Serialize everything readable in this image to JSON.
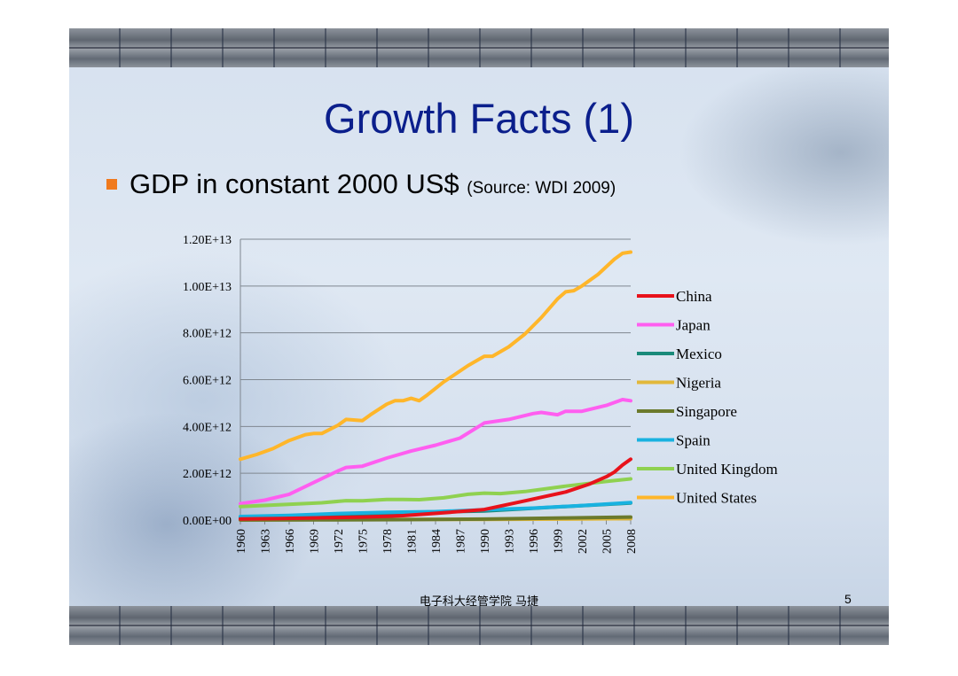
{
  "slide": {
    "title": "Growth Facts (1)",
    "bullet_main": "GDP in constant 2000 US$ ",
    "bullet_source": "(Source: WDI 2009)",
    "footer": "电子科大经管学院 马捷",
    "page_number": "5",
    "bullet_color": "#f07a1e",
    "title_color": "#0b1f8c"
  },
  "chart_data": {
    "type": "line",
    "title": "",
    "xlabel": "",
    "ylabel": "",
    "ylim": [
      0,
      12000000000000
    ],
    "y_ticks": [
      0,
      2000000000000,
      4000000000000,
      6000000000000,
      8000000000000,
      10000000000000,
      12000000000000
    ],
    "y_tick_labels": [
      "0.00E+00",
      "2.00E+12",
      "4.00E+12",
      "6.00E+12",
      "8.00E+12",
      "1.00E+13",
      "1.20E+13"
    ],
    "x_range": [
      1960,
      2008
    ],
    "x_tick_labels": [
      "1960",
      "1963",
      "1966",
      "1969",
      "1972",
      "1975",
      "1978",
      "1981",
      "1984",
      "1987",
      "1990",
      "1993",
      "1996",
      "1999",
      "2002",
      "2005",
      "2008"
    ],
    "grid": "horizontal",
    "legend_position": "right",
    "series": [
      {
        "name": "China",
        "color": "#e8121b",
        "x": [
          1960,
          1965,
          1970,
          1975,
          1978,
          1980,
          1985,
          1990,
          1995,
          2000,
          2003,
          2005,
          2006,
          2007,
          2008
        ],
        "values": [
          50000000000,
          70000000000,
          100000000000,
          130000000000,
          160000000000,
          190000000000,
          310000000000,
          450000000000,
          820000000000,
          1200000000000,
          1550000000000,
          1850000000000,
          2050000000000,
          2350000000000,
          2600000000000
        ]
      },
      {
        "name": "Japan",
        "color": "#ff5ef0",
        "x": [
          1960,
          1963,
          1966,
          1969,
          1972,
          1973,
          1975,
          1978,
          1981,
          1984,
          1987,
          1990,
          1993,
          1996,
          1997,
          1999,
          2000,
          2002,
          2005,
          2007,
          2008
        ],
        "values": [
          700000000000,
          850000000000,
          1100000000000,
          1600000000000,
          2100000000000,
          2250000000000,
          2300000000000,
          2650000000000,
          2950000000000,
          3200000000000,
          3500000000000,
          4150000000000,
          4300000000000,
          4550000000000,
          4600000000000,
          4500000000000,
          4650000000000,
          4650000000000,
          4900000000000,
          5150000000000,
          5100000000000
        ]
      },
      {
        "name": "Mexico",
        "color": "#1a8a7a",
        "x": [
          1960,
          1970,
          1980,
          1990,
          2000,
          2008
        ],
        "values": [
          100000000000,
          170000000000,
          320000000000,
          390000000000,
          580000000000,
          730000000000
        ]
      },
      {
        "name": "Nigeria",
        "color": "#e2b83a",
        "x": [
          1960,
          1970,
          1980,
          1990,
          2000,
          2008
        ],
        "values": [
          10000000000,
          20000000000,
          30000000000,
          30000000000,
          40000000000,
          60000000000
        ]
      },
      {
        "name": "Singapore",
        "color": "#6b7a2c",
        "x": [
          1960,
          1970,
          1980,
          1990,
          2000,
          2008
        ],
        "values": [
          3000000000,
          8000000000,
          20000000000,
          40000000000,
          90000000000,
          130000000000
        ]
      },
      {
        "name": "Spain",
        "color": "#19b2e0",
        "x": [
          1960,
          1966,
          1972,
          1978,
          1984,
          1990,
          1996,
          2002,
          2008
        ],
        "values": [
          150000000000,
          200000000000,
          280000000000,
          330000000000,
          360000000000,
          440000000000,
          510000000000,
          620000000000,
          750000000000
        ]
      },
      {
        "name": "United Kingdom",
        "color": "#8fd150",
        "x": [
          1960,
          1965,
          1970,
          1973,
          1975,
          1978,
          1980,
          1982,
          1985,
          1988,
          1990,
          1992,
          1995,
          2000,
          2005,
          2008
        ],
        "values": [
          580000000000,
          660000000000,
          740000000000,
          830000000000,
          820000000000,
          880000000000,
          880000000000,
          870000000000,
          950000000000,
          1100000000000,
          1150000000000,
          1130000000000,
          1220000000000,
          1450000000000,
          1650000000000,
          1760000000000
        ]
      },
      {
        "name": "United States",
        "color": "#ffb62a",
        "x": [
          1960,
          1962,
          1964,
          1966,
          1968,
          1969,
          1970,
          1972,
          1973,
          1975,
          1976,
          1978,
          1979,
          1980,
          1981,
          1982,
          1983,
          1985,
          1988,
          1989,
          1990,
          1991,
          1993,
          1995,
          1997,
          1999,
          2000,
          2001,
          2002,
          2004,
          2006,
          2007,
          2008
        ],
        "values": [
          2600000000000,
          2800000000000,
          3050000000000,
          3400000000000,
          3650000000000,
          3700000000000,
          3700000000000,
          4050000000000,
          4300000000000,
          4250000000000,
          4500000000000,
          4950000000000,
          5100000000000,
          5100000000000,
          5200000000000,
          5100000000000,
          5350000000000,
          5900000000000,
          6600000000000,
          6800000000000,
          7000000000000,
          7000000000000,
          7400000000000,
          7950000000000,
          8650000000000,
          9450000000000,
          9750000000000,
          9800000000000,
          10000000000000,
          10500000000000,
          11150000000000,
          11400000000000,
          11450000000000
        ]
      }
    ]
  }
}
